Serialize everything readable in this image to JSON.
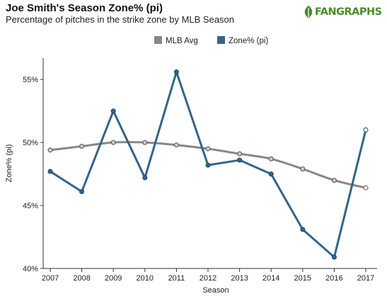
{
  "header": {
    "title": "Joe Smith's Season Zone% (pi)",
    "subtitle": "Percentage of pitches in the strike zone by MLB Season"
  },
  "logo": {
    "text": "FANGRAPHS",
    "icon": "fangraphs-leaf-icon",
    "color": "#4a8c2a"
  },
  "chart_data": {
    "type": "line",
    "title": "Joe Smith's Season Zone% (pi)",
    "subtitle": "Percentage of pitches in the strike zone by MLB Season",
    "xlabel": "Season",
    "ylabel": "Zone% (pi)",
    "x": [
      2007,
      2008,
      2009,
      2010,
      2011,
      2012,
      2013,
      2014,
      2015,
      2016,
      2017
    ],
    "xticks": [
      "2007",
      "2008",
      "2009",
      "2010",
      "2011",
      "2012",
      "2013",
      "2014",
      "2015",
      "2016",
      "2017"
    ],
    "ylim": [
      40,
      56.7
    ],
    "yticks": [
      40,
      45,
      50,
      55
    ],
    "ytick_labels": [
      "40%",
      "45%",
      "50%",
      "55%"
    ],
    "grid": false,
    "legend_position": "top-center",
    "series": [
      {
        "name": "MLB Avg",
        "color": "#888888",
        "smooth": true,
        "values": [
          49.4,
          49.7,
          50.0,
          50.0,
          49.8,
          49.5,
          49.1,
          48.7,
          47.9,
          47.0,
          46.4
        ]
      },
      {
        "name": "Zone% (pi)",
        "color": "#33658a",
        "smooth": false,
        "values": [
          47.7,
          46.1,
          52.5,
          47.2,
          55.6,
          48.2,
          48.6,
          47.5,
          43.1,
          40.9,
          51.0
        ]
      }
    ]
  }
}
